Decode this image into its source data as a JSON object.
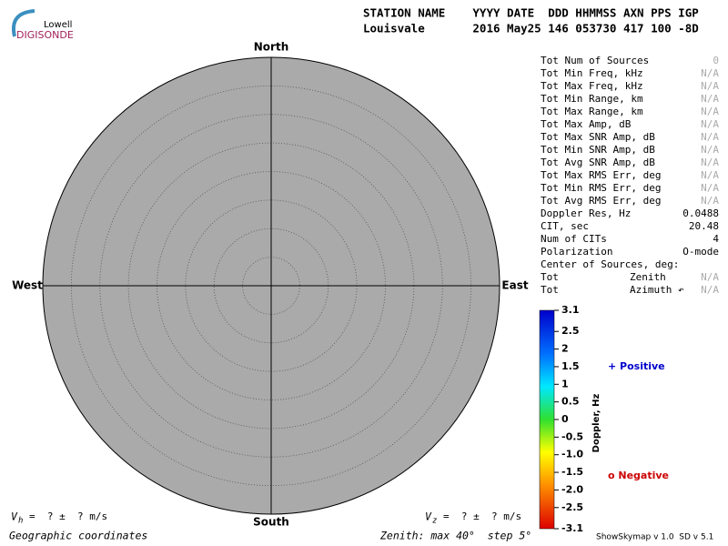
{
  "logo": {
    "top": "Lowell",
    "name": "DIGISONDE"
  },
  "header": {
    "line1": "STATION NAME    YYYY DATE  DDD HHMMSS AXN PPS IGP",
    "line2": "Louisvale       2016 May25 146 053730 417 100 -8D"
  },
  "directions": {
    "north": "North",
    "south": "South",
    "west": "West",
    "east": "East"
  },
  "stats": [
    {
      "label": "Tot Num of Sources",
      "value": "0"
    },
    {
      "label": "Tot Min Freq, kHz",
      "value": "N/A"
    },
    {
      "label": "Tot Max Freq, kHz",
      "value": "N/A"
    },
    {
      "label": "Tot Min Range, km",
      "value": "N/A"
    },
    {
      "label": "Tot Max Range, km",
      "value": "N/A"
    },
    {
      "label": "Tot Max Amp, dB",
      "value": "N/A"
    },
    {
      "label": "Tot Max SNR Amp, dB",
      "value": "N/A"
    },
    {
      "label": "Tot Min SNR Amp, dB",
      "value": "N/A"
    },
    {
      "label": "Tot Avg SNR Amp, dB",
      "value": "N/A"
    },
    {
      "label": "Tot Max RMS Err, deg",
      "value": "N/A"
    },
    {
      "label": "Tot Min RMS Err, deg",
      "value": "N/A"
    },
    {
      "label": "Tot Avg RMS Err, deg",
      "value": "N/A"
    },
    {
      "label": "Doppler Res, Hz",
      "value": "0.0488"
    },
    {
      "label": "CIT, sec",
      "value": "20.48"
    },
    {
      "label": "Num of CITs",
      "value": "4"
    },
    {
      "label": "Polarization",
      "value": "O-mode"
    },
    {
      "label": "Center of Sources, deg:"
    },
    {
      "label": "Tot",
      "mid": "Zenith",
      "value": "N/A"
    },
    {
      "label": "Tot",
      "mid": "Azimuth ↶",
      "value": "N/A"
    }
  ],
  "colorbar": {
    "title": "Doppler, Hz",
    "lim": [
      -3.1,
      3.1
    ],
    "ticks": [
      3.1,
      2.5,
      2,
      1.5,
      1,
      0.5,
      0,
      -0.5,
      {
        "value": -1,
        "label": "-1.0"
      },
      -1.5,
      {
        "value": -2,
        "label": "-2.0"
      },
      -2.5,
      -3.1
    ]
  },
  "legend": {
    "positive": "+ Positive",
    "negative": "o Negative"
  },
  "footer": {
    "vh": {
      "symbol": "V",
      "sub": "h",
      "text": "=  ? ±  ? m/s"
    },
    "vz": {
      "symbol": "V",
      "sub": "z",
      "text": "=  ? ±  ? m/s"
    },
    "coords": "Geographic coordinates",
    "zenith": "Zenith: max 40°  step 5°",
    "version": "ShowSkymap v 1.0  SD v 5.1"
  }
}
